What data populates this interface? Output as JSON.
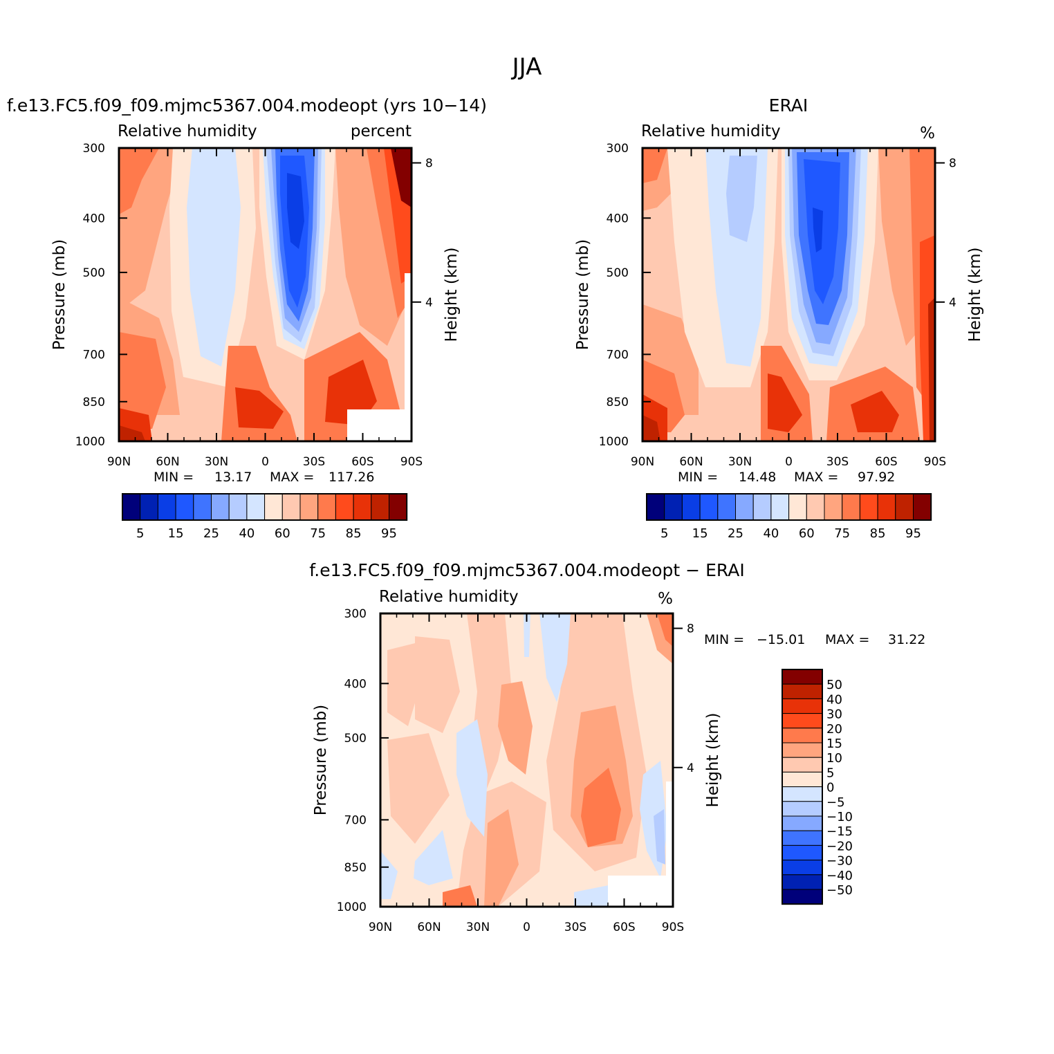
{
  "figure_title": "JJA",
  "colors": {
    "full_palette": [
      "#00007a",
      "#0021b3",
      "#0a3ee6",
      "#1f58ff",
      "#3f74ff",
      "#86a9ff",
      "#b5ccff",
      "#d4e5ff",
      "#ffe7d6",
      "#ffc9b1",
      "#ffa57f",
      "#ff7a4c",
      "#ff4b1c",
      "#e83208",
      "#bf2200",
      "#830000"
    ],
    "diff_palette": [
      "#830000",
      "#bf2200",
      "#e83208",
      "#ff4b1c",
      "#ff7a4c",
      "#ffa57f",
      "#ffc9b1",
      "#ffe7d6",
      "#d4e5ff",
      "#b5ccff",
      "#86a9ff",
      "#3f74ff",
      "#1f58ff",
      "#0a3ee6",
      "#0021b3",
      "#00007a"
    ]
  },
  "chart_data": [
    {
      "type": "heatmap",
      "title": "f.e13.FC5.f09_f09.mjmc5367.004.modeopt (yrs 10−14)",
      "subtitle_left": "Relative humidity",
      "subtitle_right": "percent",
      "ylabel": "Pressure (mb)",
      "ylabel_right": "Height (km)",
      "x_ticks": [
        "90N",
        "60N",
        "30N",
        "0",
        "30S",
        "60S",
        "90S"
      ],
      "y_ticks": [
        "300",
        "400",
        "500",
        "700",
        "850",
        "1000"
      ],
      "height_ticks": [
        "8",
        "4"
      ],
      "min_label": "MIN =",
      "min_value": "13.17",
      "max_label": "MAX =",
      "max_value": "117.26",
      "colorbar_labels": [
        "5",
        "15",
        "25",
        "40",
        "60",
        "75",
        "85",
        "95"
      ],
      "ylim": [
        1000,
        300
      ],
      "xlim": [
        90,
        -90
      ],
      "field_levels_by_column": [
        11,
        10,
        9,
        8,
        8,
        6,
        5,
        5,
        6,
        8,
        10,
        12,
        11,
        10,
        6,
        3,
        2,
        3,
        6,
        9,
        10,
        11,
        11,
        12,
        13,
        14
      ]
    },
    {
      "type": "heatmap",
      "title": "ERAI",
      "subtitle_left": "Relative humidity",
      "subtitle_right": "%",
      "ylabel": "Pressure (mb)",
      "ylabel_right": "Height (km)",
      "x_ticks": [
        "90N",
        "60N",
        "30N",
        "0",
        "30S",
        "60S",
        "90S"
      ],
      "y_ticks": [
        "300",
        "400",
        "500",
        "700",
        "850",
        "1000"
      ],
      "height_ticks": [
        "8",
        "4"
      ],
      "min_label": "MIN =",
      "min_value": "14.48",
      "max_label": "MAX =",
      "max_value": "97.92",
      "colorbar_labels": [
        "5",
        "15",
        "25",
        "40",
        "60",
        "75",
        "85",
        "95"
      ],
      "ylim": [
        1000,
        300
      ],
      "xlim": [
        90,
        -90
      ]
    },
    {
      "type": "heatmap",
      "title": "f.e13.FC5.f09_f09.mjmc5367.004.modeopt − ERAI",
      "subtitle_left": "Relative humidity",
      "subtitle_right": "%",
      "ylabel": "Pressure (mb)",
      "ylabel_right": "Height (km)",
      "x_ticks": [
        "90N",
        "60N",
        "30N",
        "0",
        "30S",
        "60S",
        "90S"
      ],
      "y_ticks": [
        "300",
        "400",
        "500",
        "700",
        "850",
        "1000"
      ],
      "height_ticks": [
        "8",
        "4"
      ],
      "min_label": "MIN =",
      "min_value": "−15.01",
      "max_label": "MAX =",
      "max_value": "31.22",
      "colorbar_labels": [
        "50",
        "40",
        "30",
        "20",
        "15",
        "10",
        "5",
        "0",
        "−5",
        "−10",
        "−15",
        "−20",
        "−30",
        "−40",
        "−50"
      ],
      "ylim": [
        1000,
        300
      ],
      "xlim": [
        90,
        -90
      ]
    }
  ]
}
